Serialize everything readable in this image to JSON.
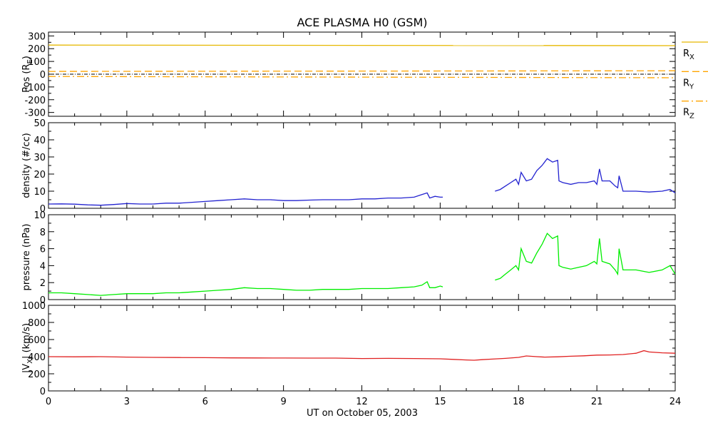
{
  "chart_data": {
    "type": "line",
    "title": "ACE PLASMA H0 (GSM)",
    "xlabel": "UT on October 05, 2003",
    "xlim": [
      0,
      24
    ],
    "xticks": [
      "0",
      "3",
      "6",
      "9",
      "12",
      "15",
      "18",
      "21",
      "24"
    ],
    "panels": [
      {
        "id": "pos",
        "ylabel": "Pos (R",
        "ylabel_sub": "E",
        "ylabel_tail": ")",
        "ylim": [
          -330,
          330
        ],
        "yticks": [
          "300",
          "200",
          "100",
          "0",
          "-100",
          "-200",
          "-300"
        ],
        "zero_line": true,
        "legend": [
          {
            "label": "R",
            "sub": "X",
            "style": "solid"
          },
          {
            "label": "R",
            "sub": "Y",
            "style": "dashed"
          },
          {
            "label": "R",
            "sub": "Z",
            "style": "dashdot"
          }
        ],
        "series": [
          {
            "name": "RX",
            "color": "#e6b800",
            "style": "solid",
            "x": [
              0,
              24
            ],
            "y": [
              228,
              224
            ]
          },
          {
            "name": "RY",
            "color": "#ffa500",
            "style": "dashed",
            "x": [
              0,
              24
            ],
            "y": [
              22,
              27
            ]
          },
          {
            "name": "RZ",
            "color": "#ffa500",
            "style": "dashdot",
            "x": [
              0,
              24
            ],
            "y": [
              -18,
              -28
            ]
          }
        ]
      },
      {
        "id": "density",
        "ylabel": "density (#/cc)",
        "ylim": [
          0,
          50
        ],
        "yticks": [
          "50",
          "40",
          "30",
          "20",
          "10",
          "0"
        ],
        "series": [
          {
            "name": "density",
            "color": "#2323d0",
            "x": [
              0,
              0.5,
              1,
              1.5,
              2,
              2.5,
              3,
              3.5,
              4,
              4.5,
              5,
              5.5,
              6,
              6.5,
              7,
              7.5,
              8,
              8.5,
              9,
              9.5,
              10,
              10.5,
              11,
              11.5,
              12,
              12.5,
              13,
              13.5,
              14,
              14.3,
              14.5,
              14.6,
              14.8,
              15.0,
              15.1,
              null,
              17.1,
              17.3,
              17.5,
              17.7,
              17.9,
              18.0,
              18.1,
              18.3,
              18.5,
              18.7,
              18.9,
              19.1,
              19.3,
              19.5,
              19.55,
              19.7,
              20.0,
              20.3,
              20.6,
              20.9,
              21.0,
              21.1,
              21.2,
              21.5,
              21.7,
              21.8,
              21.85,
              22.0,
              22.5,
              23.0,
              23.5,
              23.8,
              24.0
            ],
            "y": [
              2.5,
              2.6,
              2.4,
              2,
              1.8,
              2.2,
              2.8,
              2.5,
              2.5,
              3,
              3,
              3.5,
              4,
              4.5,
              5,
              5.5,
              5,
              5,
              4.5,
              4.5,
              4.8,
              5,
              5,
              5,
              5.5,
              5.5,
              6,
              6,
              6.5,
              8,
              9,
              6,
              7,
              6.5,
              6.5,
              null,
              10,
              11,
              13,
              15,
              17,
              14,
              21,
              16,
              17,
              22,
              25,
              29,
              27,
              28,
              16,
              15,
              14,
              15,
              15,
              16,
              14,
              23,
              16,
              16,
              13,
              12,
              19,
              10,
              10,
              9.5,
              10,
              11,
              9
            ]
          }
        ]
      },
      {
        "id": "pressure",
        "ylabel": "pressure (nPa)",
        "ylim": [
          0,
          10
        ],
        "yticks": [
          "10",
          "8",
          "6",
          "4",
          "2",
          "0"
        ],
        "series": [
          {
            "name": "pressure",
            "color": "#00ee00",
            "x": [
              0,
              0.5,
              1,
              1.5,
              2,
              2.5,
              3,
              3.5,
              4,
              4.5,
              5,
              5.5,
              6,
              6.5,
              7,
              7.5,
              8,
              8.5,
              9,
              9.5,
              10,
              10.5,
              11,
              11.5,
              12,
              12.5,
              13,
              13.5,
              14,
              14.3,
              14.5,
              14.6,
              14.8,
              15.0,
              15.1,
              null,
              17.1,
              17.3,
              17.5,
              17.7,
              17.9,
              18.0,
              18.1,
              18.3,
              18.5,
              18.7,
              18.9,
              19.1,
              19.3,
              19.5,
              19.55,
              19.7,
              20.0,
              20.3,
              20.6,
              20.9,
              21.0,
              21.1,
              21.2,
              21.5,
              21.7,
              21.8,
              21.85,
              22.0,
              22.5,
              23.0,
              23.5,
              23.8,
              24.0
            ],
            "y": [
              0.8,
              0.8,
              0.7,
              0.6,
              0.5,
              0.6,
              0.7,
              0.7,
              0.7,
              0.8,
              0.8,
              0.9,
              1,
              1.1,
              1.2,
              1.4,
              1.3,
              1.3,
              1.2,
              1.1,
              1.1,
              1.2,
              1.2,
              1.2,
              1.3,
              1.3,
              1.3,
              1.4,
              1.5,
              1.7,
              2.1,
              1.4,
              1.4,
              1.6,
              1.5,
              null,
              2.3,
              2.5,
              3,
              3.5,
              4,
              3.5,
              6,
              4.5,
              4.3,
              5.5,
              6.5,
              7.8,
              7.2,
              7.5,
              4,
              3.8,
              3.6,
              3.8,
              4,
              4.5,
              4.2,
              7.2,
              4.5,
              4.2,
              3.5,
              3,
              6,
              3.5,
              3.5,
              3.2,
              3.5,
              4,
              3
            ]
          }
        ]
      },
      {
        "id": "vx",
        "ylabel": "|V",
        "ylabel_sub": "X",
        "ylabel_tail": "| (km/s)",
        "ylim": [
          0,
          1000
        ],
        "yticks": [
          "1000",
          "800",
          "600",
          "400",
          "200",
          "0"
        ],
        "series": [
          {
            "name": "|VX|",
            "color": "#e02020",
            "x": [
              0,
              1,
              2,
              3,
              4,
              5,
              6,
              7,
              8,
              9,
              10,
              11,
              12,
              13,
              14,
              15,
              15.5,
              16,
              16.3,
              16.6,
              17,
              17.5,
              18,
              18.3,
              18.7,
              19,
              19.5,
              20,
              20.5,
              21,
              21.5,
              22,
              22.5,
              22.8,
              23,
              23.5,
              24
            ],
            "y": [
              400,
              398,
              400,
              395,
              392,
              390,
              388,
              386,
              385,
              384,
              383,
              383,
              378,
              380,
              378,
              375,
              368,
              362,
              358,
              365,
              372,
              380,
              392,
              408,
              400,
              395,
              398,
              405,
              410,
              418,
              420,
              425,
              440,
              470,
              455,
              445,
              440
            ]
          }
        ]
      }
    ]
  }
}
